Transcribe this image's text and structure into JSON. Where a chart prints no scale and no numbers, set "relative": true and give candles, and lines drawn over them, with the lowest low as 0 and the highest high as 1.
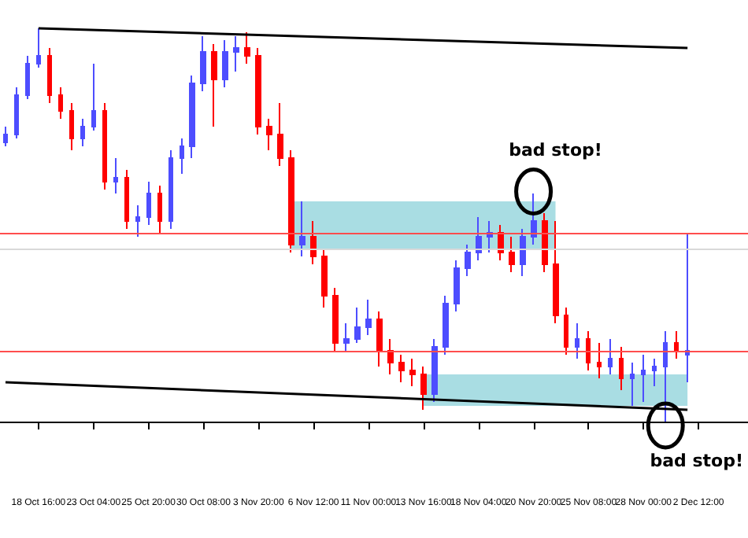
{
  "chart_data": {
    "type": "candlestick",
    "relative": true,
    "categories": [
      null,
      null,
      null,
      "18 Oct 16:00",
      null,
      null,
      null,
      null,
      "23 Oct 04:00",
      null,
      null,
      null,
      null,
      "25 Oct 20:00",
      null,
      null,
      null,
      null,
      "30 Oct 08:00",
      null,
      null,
      null,
      null,
      "3 Nov 20:00",
      null,
      null,
      null,
      null,
      "6 Nov 12:00",
      null,
      null,
      null,
      null,
      "11 Nov 00:00",
      null,
      null,
      null,
      null,
      "13 Nov 16:00",
      null,
      null,
      null,
      null,
      "18 Nov 04:00",
      null,
      null,
      null,
      null,
      "20 Nov 20:00",
      null,
      null,
      null,
      null,
      "25 Nov 08:00",
      null,
      null,
      null,
      null,
      "28 Nov 00:00",
      null,
      null,
      null,
      null,
      "2 Dec 12:00",
      null,
      null,
      null,
      null
    ],
    "ohlc": [
      [
        0.71,
        0.75,
        0.7,
        0.73
      ],
      [
        0.73,
        0.85,
        0.72,
        0.83
      ],
      [
        0.83,
        0.93,
        0.82,
        0.91
      ],
      [
        0.91,
        1.0,
        0.9,
        0.93
      ],
      [
        0.93,
        0.95,
        0.81,
        0.83
      ],
      [
        0.83,
        0.85,
        0.77,
        0.79
      ],
      [
        0.79,
        0.81,
        0.69,
        0.72
      ],
      [
        0.72,
        0.77,
        0.7,
        0.75
      ],
      [
        0.75,
        0.91,
        0.74,
        0.79
      ],
      [
        0.79,
        0.81,
        0.59,
        0.61
      ],
      [
        0.61,
        0.67,
        0.58,
        0.62
      ],
      [
        0.62,
        0.64,
        0.49,
        0.51
      ],
      [
        0.51,
        0.55,
        0.47,
        0.52
      ],
      [
        0.52,
        0.61,
        0.5,
        0.58
      ],
      [
        0.58,
        0.6,
        0.48,
        0.51
      ],
      [
        0.51,
        0.69,
        0.49,
        0.67
      ],
      [
        0.67,
        0.72,
        0.63,
        0.7
      ],
      [
        0.7,
        0.88,
        0.67,
        0.86
      ],
      [
        0.86,
        0.98,
        0.84,
        0.94
      ],
      [
        0.94,
        0.96,
        0.75,
        0.87
      ],
      [
        0.87,
        0.97,
        0.85,
        0.94
      ],
      [
        0.94,
        0.98,
        0.89,
        0.95
      ],
      [
        0.95,
        0.99,
        0.91,
        0.93
      ],
      [
        0.93,
        0.95,
        0.73,
        0.75
      ],
      [
        0.75,
        0.77,
        0.69,
        0.73
      ],
      [
        0.73,
        0.81,
        0.65,
        0.67
      ],
      [
        0.67,
        0.69,
        0.43,
        0.45
      ],
      [
        0.45,
        0.56,
        0.42,
        0.47
      ],
      [
        0.47,
        0.51,
        0.4,
        0.42
      ],
      [
        0.42,
        0.44,
        0.29,
        0.32
      ],
      [
        0.32,
        0.34,
        0.18,
        0.2
      ],
      [
        0.2,
        0.25,
        0.18,
        0.21
      ],
      [
        0.21,
        0.29,
        0.2,
        0.24
      ],
      [
        0.24,
        0.31,
        0.22,
        0.26
      ],
      [
        0.26,
        0.28,
        0.14,
        0.18
      ],
      [
        0.18,
        0.21,
        0.12,
        0.15
      ],
      [
        0.15,
        0.17,
        0.1,
        0.13
      ],
      [
        0.13,
        0.16,
        0.09,
        0.12
      ],
      [
        0.12,
        0.14,
        0.03,
        0.07
      ],
      [
        0.07,
        0.21,
        0.05,
        0.19
      ],
      [
        0.19,
        0.32,
        0.17,
        0.3
      ],
      [
        0.3,
        0.41,
        0.28,
        0.39
      ],
      [
        0.39,
        0.45,
        0.37,
        0.43
      ],
      [
        0.43,
        0.52,
        0.41,
        0.47
      ],
      [
        0.47,
        0.51,
        0.43,
        0.48
      ],
      [
        0.48,
        0.5,
        0.41,
        0.43
      ],
      [
        0.43,
        0.47,
        0.38,
        0.4
      ],
      [
        0.4,
        0.49,
        0.37,
        0.47
      ],
      [
        0.47,
        0.58,
        0.45,
        0.51
      ],
      [
        0.51,
        0.53,
        0.38,
        0.4
      ],
      [
        0.4,
        0.51,
        0.25,
        0.27
      ],
      [
        0.27,
        0.29,
        0.17,
        0.19
      ],
      [
        0.19,
        0.25,
        0.16,
        0.21
      ],
      [
        0.21,
        0.23,
        0.13,
        0.15
      ],
      [
        0.15,
        0.2,
        0.11,
        0.14
      ],
      [
        0.14,
        0.21,
        0.12,
        0.16
      ],
      [
        0.16,
        0.19,
        0.08,
        0.11
      ],
      [
        0.11,
        0.15,
        0.04,
        0.12
      ],
      [
        0.12,
        0.17,
        0.05,
        0.13
      ],
      [
        0.13,
        0.16,
        0.09,
        0.14
      ],
      [
        0.14,
        0.23,
        0.0,
        0.2
      ],
      [
        0.2,
        0.23,
        0.16,
        0.18
      ],
      [
        0.17,
        0.48,
        0.1,
        0.18
      ],
      null,
      null,
      null,
      null,
      null
    ],
    "colors": [
      "#4d4dff",
      "#4d4dff",
      "#4d4dff",
      "#4d4dff",
      "#ff0000",
      "#ff0000",
      "#ff0000",
      "#4d4dff",
      "#4d4dff",
      "#ff0000",
      "#4d4dff",
      "#ff0000",
      "#4d4dff",
      "#4d4dff",
      "#ff0000",
      "#4d4dff",
      "#4d4dff",
      "#4d4dff",
      "#4d4dff",
      "#ff0000",
      "#4d4dff",
      "#4d4dff",
      "#ff0000",
      "#ff0000",
      "#ff0000",
      "#ff0000",
      "#ff0000",
      "#4d4dff",
      "#ff0000",
      "#ff0000",
      "#ff0000",
      "#4d4dff",
      "#4d4dff",
      "#4d4dff",
      "#ff0000",
      "#ff0000",
      "#ff0000",
      "#ff0000",
      "#ff0000",
      "#4d4dff",
      "#4d4dff",
      "#4d4dff",
      "#4d4dff",
      "#4d4dff",
      "#4d4dff",
      "#ff0000",
      "#ff0000",
      "#4d4dff",
      "#4d4dff",
      "#ff0000",
      "#ff0000",
      "#ff0000",
      "#4d4dff",
      "#ff0000",
      "#ff0000",
      "#4d4dff",
      "#ff0000",
      "#4d4dff",
      "#4d4dff",
      "#4d4dff",
      "#4d4dff",
      "#ff0000",
      "#4d4dff",
      null,
      null,
      null,
      null,
      null
    ],
    "series": [
      {
        "type": "line",
        "color": "#000000",
        "values": [
          null,
          null,
          null,
          1.0,
          null,
          null,
          null,
          null,
          null,
          null,
          null,
          null,
          null,
          null,
          null,
          null,
          null,
          null,
          null,
          null,
          null,
          null,
          null,
          null,
          null,
          null,
          null,
          null,
          null,
          null,
          null,
          null,
          null,
          null,
          null,
          null,
          null,
          null,
          null,
          null,
          null,
          null,
          null,
          null,
          null,
          null,
          null,
          null,
          null,
          null,
          null,
          null,
          null,
          null,
          null,
          null,
          null,
          null,
          null,
          null,
          null,
          null,
          0.95,
          null,
          null,
          null,
          null,
          null
        ]
      },
      {
        "type": "line",
        "color": "#000000",
        "values": [
          0.1,
          null,
          null,
          null,
          null,
          null,
          null,
          null,
          null,
          null,
          null,
          null,
          null,
          null,
          null,
          null,
          null,
          null,
          null,
          null,
          null,
          null,
          null,
          null,
          null,
          null,
          null,
          null,
          null,
          null,
          null,
          null,
          null,
          null,
          null,
          null,
          null,
          null,
          null,
          null,
          null,
          null,
          null,
          null,
          null,
          null,
          null,
          null,
          null,
          null,
          null,
          null,
          null,
          null,
          null,
          null,
          null,
          null,
          null,
          null,
          null,
          null,
          0.03,
          null,
          null,
          null,
          null,
          null
        ]
      }
    ],
    "ref_lines": [
      {
        "axis": "y",
        "value": 0.48,
        "color": "#ff4d4d"
      },
      {
        "axis": "y",
        "value": 0.44,
        "color": "#d9d9d9"
      },
      {
        "axis": "y",
        "value": 0.18,
        "color": "#ff4d4d"
      }
    ],
    "annotations": [
      "bad stop!",
      "bad stop!"
    ],
    "marker": "none"
  }
}
